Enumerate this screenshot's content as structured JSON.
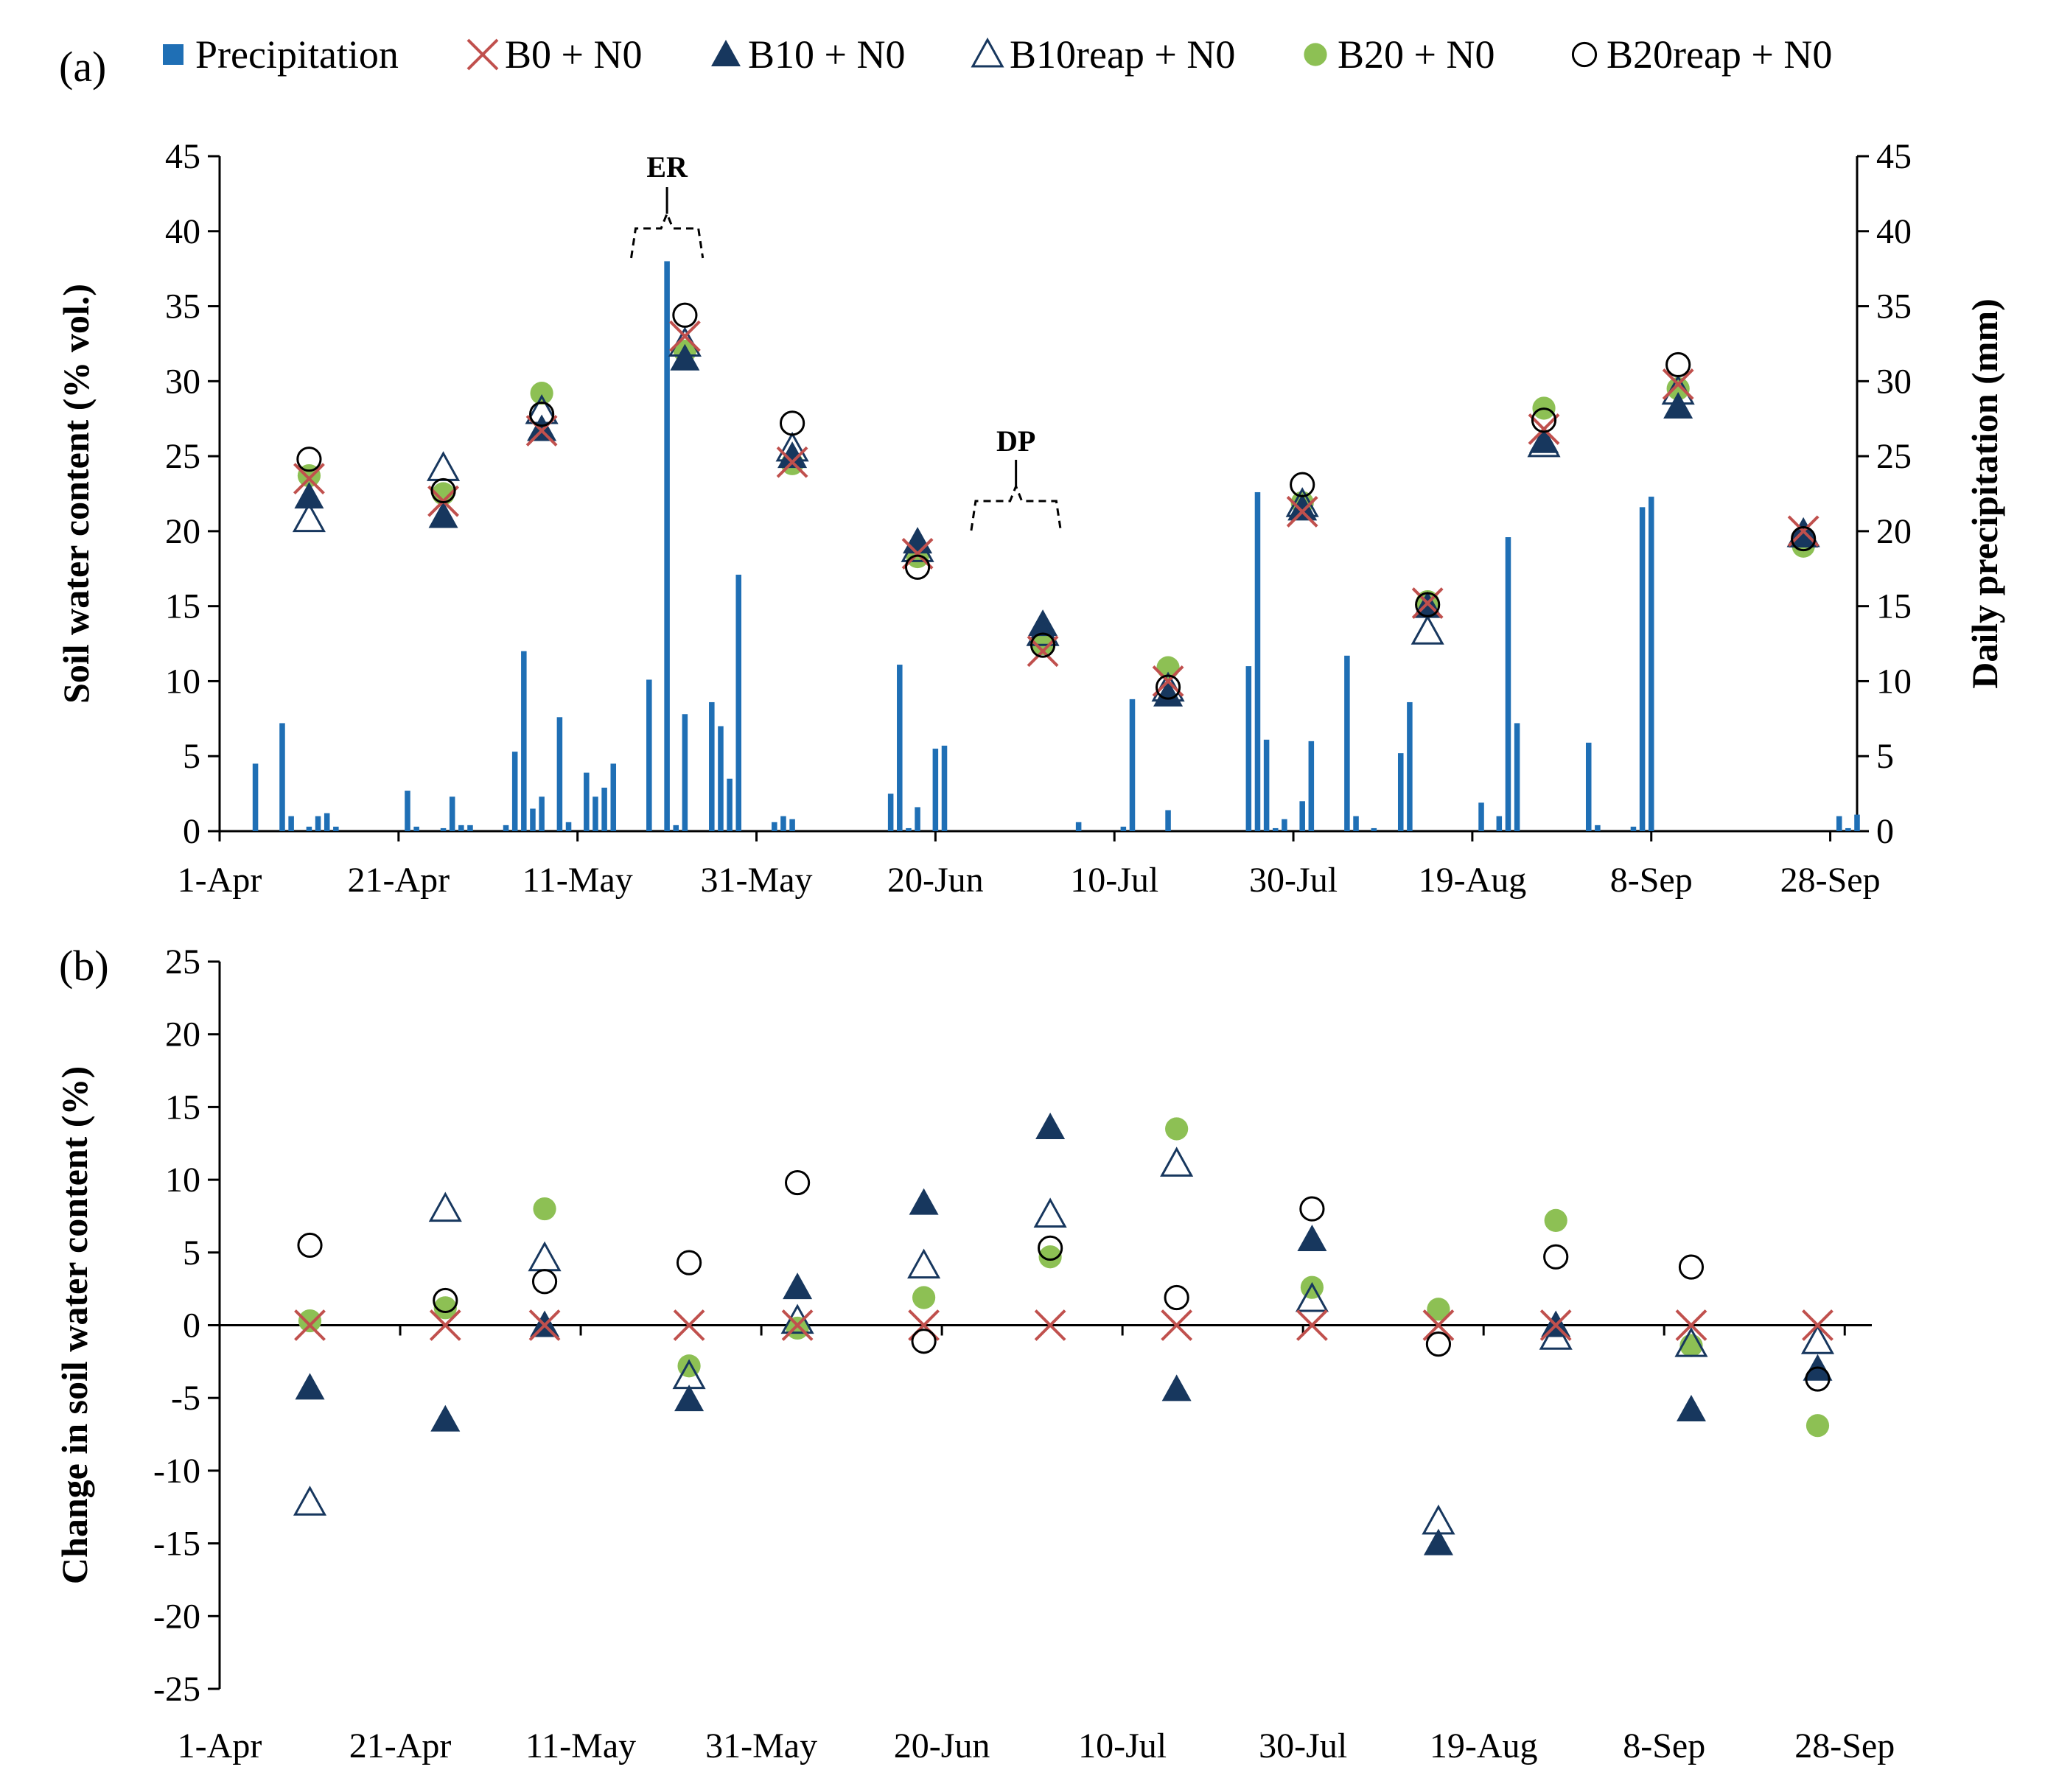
{
  "colors": {
    "precip": "#1F6FB5",
    "b0": "#C0504D",
    "b10": "#17375E",
    "b20": "#8DC054",
    "axis": "#000000"
  },
  "legend": [
    {
      "key": "precip",
      "label": "Precipitation",
      "marker": "square-icon"
    },
    {
      "key": "b0",
      "label": "B0 + N0",
      "marker": "cross-icon"
    },
    {
      "key": "b10",
      "label": "B10 + N0",
      "marker": "filled-triangle-icon"
    },
    {
      "key": "b10reap",
      "label": "B10reap + N0",
      "marker": "open-triangle-icon"
    },
    {
      "key": "b20",
      "label": "B20 + N0",
      "marker": "filled-circle-icon"
    },
    {
      "key": "b20reap",
      "label": "B20reap + N0",
      "marker": "open-circle-icon"
    }
  ],
  "chart_data": [
    {
      "panel": "(a)",
      "type": "scatter",
      "xlabel": "",
      "ylabel": "Soil water content (% vol.)",
      "y2label": "Daily precipitation (mm)",
      "xlim": [
        0,
        183
      ],
      "ylim": [
        0,
        45
      ],
      "y2lim": [
        0,
        45
      ],
      "yticks": [
        0,
        5,
        10,
        15,
        20,
        25,
        30,
        35,
        40,
        45
      ],
      "xticks": [
        {
          "day": 0,
          "label": "1-Apr"
        },
        {
          "day": 20,
          "label": "21-Apr"
        },
        {
          "day": 40,
          "label": "11-May"
        },
        {
          "day": 60,
          "label": "31-May"
        },
        {
          "day": 80,
          "label": "20-Jun"
        },
        {
          "day": 100,
          "label": "10-Jul"
        },
        {
          "day": 120,
          "label": "30-Jul"
        },
        {
          "day": 140,
          "label": "19-Aug"
        },
        {
          "day": 160,
          "label": "8-Sep"
        },
        {
          "day": 180,
          "label": "28-Sep"
        }
      ],
      "annotations": [
        {
          "label": "ER",
          "from": 46,
          "to": 54
        },
        {
          "label": "DP",
          "from": 84,
          "to": 94
        }
      ],
      "precipitation": [
        {
          "day": 4,
          "mm": 4.5
        },
        {
          "day": 7,
          "mm": 7.2
        },
        {
          "day": 8,
          "mm": 1.0
        },
        {
          "day": 10,
          "mm": 0.3
        },
        {
          "day": 11,
          "mm": 1.0
        },
        {
          "day": 12,
          "mm": 1.2
        },
        {
          "day": 13,
          "mm": 0.3
        },
        {
          "day": 21,
          "mm": 2.7
        },
        {
          "day": 22,
          "mm": 0.3
        },
        {
          "day": 25,
          "mm": 0.2
        },
        {
          "day": 26,
          "mm": 2.3
        },
        {
          "day": 27,
          "mm": 0.4
        },
        {
          "day": 28,
          "mm": 0.4
        },
        {
          "day": 32,
          "mm": 0.4
        },
        {
          "day": 33,
          "mm": 5.3
        },
        {
          "day": 34,
          "mm": 12.0
        },
        {
          "day": 35,
          "mm": 1.5
        },
        {
          "day": 36,
          "mm": 2.3
        },
        {
          "day": 38,
          "mm": 7.6
        },
        {
          "day": 39,
          "mm": 0.6
        },
        {
          "day": 41,
          "mm": 3.9
        },
        {
          "day": 42,
          "mm": 2.3
        },
        {
          "day": 43,
          "mm": 2.9
        },
        {
          "day": 44,
          "mm": 4.5
        },
        {
          "day": 48,
          "mm": 10.1
        },
        {
          "day": 50,
          "mm": 38.0
        },
        {
          "day": 51,
          "mm": 0.4
        },
        {
          "day": 52,
          "mm": 7.8
        },
        {
          "day": 55,
          "mm": 8.6
        },
        {
          "day": 56,
          "mm": 7.0
        },
        {
          "day": 57,
          "mm": 3.5
        },
        {
          "day": 58,
          "mm": 17.1
        },
        {
          "day": 62,
          "mm": 0.6
        },
        {
          "day": 63,
          "mm": 1.0
        },
        {
          "day": 64,
          "mm": 0.8
        },
        {
          "day": 75,
          "mm": 2.5
        },
        {
          "day": 76,
          "mm": 11.1
        },
        {
          "day": 77,
          "mm": 0.2
        },
        {
          "day": 78,
          "mm": 1.6
        },
        {
          "day": 80,
          "mm": 5.5
        },
        {
          "day": 81,
          "mm": 5.7
        },
        {
          "day": 96,
          "mm": 0.6
        },
        {
          "day": 101,
          "mm": 0.3
        },
        {
          "day": 102,
          "mm": 8.8
        },
        {
          "day": 106,
          "mm": 1.4
        },
        {
          "day": 115,
          "mm": 11.0
        },
        {
          "day": 116,
          "mm": 22.6
        },
        {
          "day": 117,
          "mm": 6.1
        },
        {
          "day": 118,
          "mm": 0.2
        },
        {
          "day": 119,
          "mm": 0.8
        },
        {
          "day": 121,
          "mm": 2.0
        },
        {
          "day": 122,
          "mm": 6.0
        },
        {
          "day": 126,
          "mm": 11.7
        },
        {
          "day": 127,
          "mm": 1.0
        },
        {
          "day": 129,
          "mm": 0.2
        },
        {
          "day": 132,
          "mm": 5.2
        },
        {
          "day": 133,
          "mm": 8.6
        },
        {
          "day": 141,
          "mm": 1.9
        },
        {
          "day": 143,
          "mm": 1.0
        },
        {
          "day": 144,
          "mm": 19.6
        },
        {
          "day": 145,
          "mm": 7.2
        },
        {
          "day": 153,
          "mm": 5.9
        },
        {
          "day": 154,
          "mm": 0.4
        },
        {
          "day": 158,
          "mm": 0.3
        },
        {
          "day": 159,
          "mm": 21.6
        },
        {
          "day": 160,
          "mm": 22.3
        },
        {
          "day": 181,
          "mm": 1.0
        },
        {
          "day": 182,
          "mm": 0.2
        },
        {
          "day": 183,
          "mm": 1.1
        }
      ],
      "series": [
        {
          "key": "b0",
          "name": "B0 + N0",
          "points": [
            [
              10,
              23.5
            ],
            [
              25,
              22.0
            ],
            [
              36,
              26.7
            ],
            [
              52,
              33.0
            ],
            [
              64,
              24.6
            ],
            [
              78,
              18.5
            ],
            [
              92,
              12.0
            ],
            [
              106,
              10.0
            ],
            [
              121,
              21.3
            ],
            [
              135,
              15.2
            ],
            [
              148,
              26.8
            ],
            [
              163,
              29.8
            ],
            [
              177,
              20.0
            ]
          ]
        },
        {
          "key": "b10",
          "name": "B10 + N0",
          "points": [
            [
              10,
              22.3
            ],
            [
              25,
              21.0
            ],
            [
              36,
              26.8
            ],
            [
              52,
              31.5
            ],
            [
              64,
              25.0
            ],
            [
              78,
              19.3
            ],
            [
              92,
              13.8
            ],
            [
              106,
              9.1
            ],
            [
              121,
              21.5
            ],
            [
              135,
              15.0
            ],
            [
              148,
              26.0
            ],
            [
              163,
              28.3
            ],
            [
              177,
              19.7
            ]
          ]
        },
        {
          "key": "b10reap",
          "name": "B10reap + N0",
          "points": [
            [
              10,
              20.8
            ],
            [
              25,
              24.2
            ],
            [
              36,
              28.0
            ],
            [
              52,
              32.5
            ],
            [
              64,
              25.5
            ],
            [
              78,
              18.8
            ],
            [
              92,
              13.2
            ],
            [
              106,
              9.5
            ],
            [
              121,
              21.8
            ],
            [
              135,
              13.3
            ],
            [
              148,
              25.8
            ],
            [
              163,
              29.3
            ],
            [
              177,
              19.8
            ]
          ]
        },
        {
          "key": "b20",
          "name": "B20 + N0",
          "points": [
            [
              10,
              23.7
            ],
            [
              25,
              22.5
            ],
            [
              36,
              29.2
            ],
            [
              52,
              32.0
            ],
            [
              64,
              24.5
            ],
            [
              78,
              18.3
            ],
            [
              92,
              12.5
            ],
            [
              106,
              10.9
            ],
            [
              121,
              21.9
            ],
            [
              135,
              15.3
            ],
            [
              148,
              28.2
            ],
            [
              163,
              29.5
            ],
            [
              177,
              19.0
            ]
          ]
        },
        {
          "key": "b20reap",
          "name": "B20reap + N0",
          "points": [
            [
              10,
              24.8
            ],
            [
              25,
              22.7
            ],
            [
              36,
              27.8
            ],
            [
              52,
              34.4
            ],
            [
              64,
              27.2
            ],
            [
              78,
              17.6
            ],
            [
              92,
              12.4
            ],
            [
              106,
              9.6
            ],
            [
              121,
              23.1
            ],
            [
              135,
              15.1
            ],
            [
              148,
              27.4
            ],
            [
              163,
              31.1
            ],
            [
              177,
              19.5
            ]
          ]
        }
      ]
    },
    {
      "panel": "(b)",
      "type": "scatter",
      "xlabel": "",
      "ylabel": "Change in soil water content (%)",
      "xlim": [
        0,
        183
      ],
      "ylim": [
        -25,
        25
      ],
      "yticks": [
        -25,
        -20,
        -15,
        -10,
        -5,
        0,
        5,
        10,
        15,
        20,
        25
      ],
      "xticks": [
        {
          "day": 0,
          "label": "1-Apr"
        },
        {
          "day": 20,
          "label": "21-Apr"
        },
        {
          "day": 40,
          "label": "11-May"
        },
        {
          "day": 60,
          "label": "31-May"
        },
        {
          "day": 80,
          "label": "20-Jun"
        },
        {
          "day": 100,
          "label": "10-Jul"
        },
        {
          "day": 120,
          "label": "30-Jul"
        },
        {
          "day": 140,
          "label": "19-Aug"
        },
        {
          "day": 160,
          "label": "8-Sep"
        },
        {
          "day": 180,
          "label": "28-Sep"
        }
      ],
      "series": [
        {
          "key": "b0",
          "name": "B0 + N0",
          "points": [
            [
              10,
              0
            ],
            [
              25,
              0
            ],
            [
              36,
              0
            ],
            [
              52,
              0
            ],
            [
              64,
              0
            ],
            [
              78,
              0
            ],
            [
              92,
              0
            ],
            [
              106,
              0
            ],
            [
              121,
              0
            ],
            [
              135,
              0
            ],
            [
              148,
              0
            ],
            [
              163,
              0
            ],
            [
              177,
              0
            ]
          ]
        },
        {
          "key": "b10",
          "name": "B10 + N0",
          "points": [
            [
              10,
              -4.3
            ],
            [
              25,
              -6.5
            ],
            [
              36,
              0
            ],
            [
              52,
              -5.1
            ],
            [
              64,
              2.6
            ],
            [
              78,
              8.4
            ],
            [
              92,
              13.6
            ],
            [
              106,
              -4.4
            ],
            [
              121,
              5.9
            ],
            [
              135,
              -15.0
            ],
            [
              148,
              0
            ],
            [
              163,
              -5.8
            ],
            [
              177,
              -3.0
            ]
          ]
        },
        {
          "key": "b10reap",
          "name": "B10reap + N0",
          "points": [
            [
              10,
              -12.2
            ],
            [
              25,
              8.0
            ],
            [
              36,
              4.6
            ],
            [
              52,
              -3.5
            ],
            [
              64,
              0.3
            ],
            [
              78,
              4.1
            ],
            [
              92,
              7.6
            ],
            [
              106,
              11.1
            ],
            [
              121,
              1.8
            ],
            [
              135,
              -13.5
            ],
            [
              148,
              -0.8
            ],
            [
              163,
              -1.3
            ],
            [
              177,
              -1.1
            ]
          ]
        },
        {
          "key": "b20",
          "name": "B20 + N0",
          "points": [
            [
              10,
              0.3
            ],
            [
              25,
              1.2
            ],
            [
              36,
              8.0
            ],
            [
              52,
              -2.8
            ],
            [
              64,
              -0.2
            ],
            [
              78,
              1.9
            ],
            [
              92,
              4.7
            ],
            [
              106,
              13.5
            ],
            [
              121,
              2.6
            ],
            [
              135,
              1.1
            ],
            [
              148,
              7.2
            ],
            [
              163,
              -1.4
            ],
            [
              177,
              -6.9
            ]
          ]
        },
        {
          "key": "b20reap",
          "name": "B20reap + N0",
          "points": [
            [
              10,
              5.5
            ],
            [
              25,
              1.7
            ],
            [
              36,
              3.0
            ],
            [
              52,
              4.3
            ],
            [
              64,
              9.8
            ],
            [
              78,
              -1.1
            ],
            [
              92,
              5.3
            ],
            [
              106,
              1.9
            ],
            [
              121,
              8.0
            ],
            [
              135,
              -1.3
            ],
            [
              148,
              4.7
            ],
            [
              163,
              4.0
            ],
            [
              177,
              -3.7
            ]
          ]
        }
      ]
    }
  ]
}
